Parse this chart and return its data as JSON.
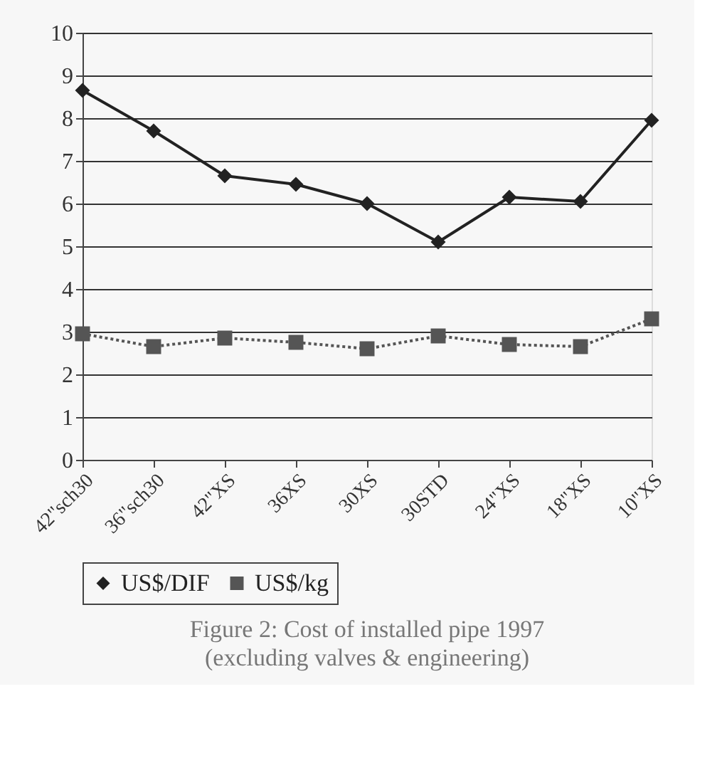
{
  "chart_data": {
    "type": "line",
    "title": "Figure 2: Cost of installed pipe 1997",
    "subtitle": "(excluding valves & engineering)",
    "categories": [
      "42\"sch30",
      "36\"sch30",
      "42\"XS",
      "36XS",
      "30XS",
      "30STD",
      "24\"XS",
      "18\"XS",
      "10\"XS"
    ],
    "series": [
      {
        "name": "US$/DIF",
        "color": "#222222",
        "marker": "diamond",
        "line_style": "solid",
        "values": [
          8.65,
          7.7,
          6.65,
          6.45,
          6.0,
          5.1,
          6.15,
          6.05,
          7.95
        ]
      },
      {
        "name": "US$/kg",
        "color": "#555555",
        "marker": "square",
        "line_style": "dotted",
        "values": [
          2.95,
          2.65,
          2.85,
          2.75,
          2.6,
          2.9,
          2.7,
          2.65,
          3.3
        ]
      }
    ],
    "ylim": [
      0,
      10
    ],
    "yticks": [
      0,
      1,
      2,
      3,
      4,
      5,
      6,
      7,
      8,
      9,
      10
    ],
    "grid": "y",
    "legend": "bottom"
  }
}
